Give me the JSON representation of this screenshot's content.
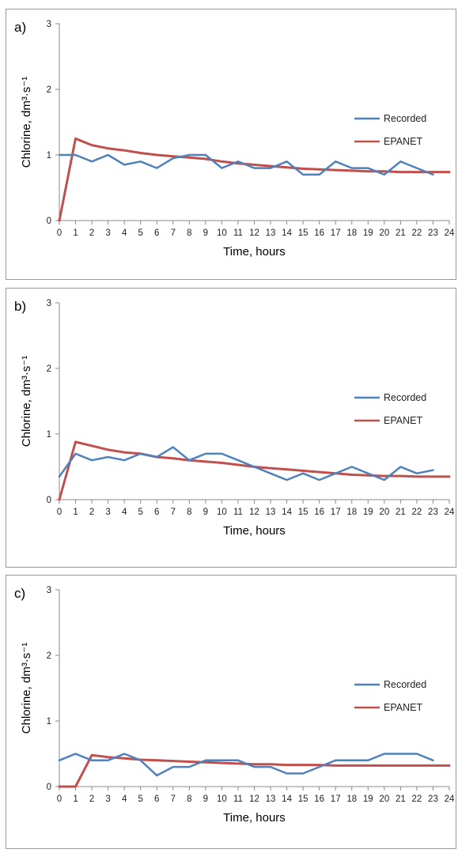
{
  "chart_data": [
    {
      "type": "line",
      "panel_label": "a)",
      "ylabel": "Chlorine, dm³·s⁻¹",
      "xlabel": "Time, hours",
      "xlim": [
        0,
        24
      ],
      "ylim": [
        0,
        3
      ],
      "x_ticks": [
        0,
        1,
        2,
        3,
        4,
        5,
        6,
        7,
        8,
        9,
        10,
        11,
        12,
        13,
        14,
        15,
        16,
        17,
        18,
        19,
        20,
        21,
        22,
        23,
        24
      ],
      "y_ticks": [
        0,
        1,
        2,
        3
      ],
      "legend_position": "right",
      "series": [
        {
          "name": "Recorded",
          "color": "#4f81bd",
          "x": [
            0,
            1,
            2,
            3,
            4,
            5,
            6,
            7,
            8,
            9,
            10,
            11,
            12,
            13,
            14,
            15,
            16,
            17,
            18,
            19,
            20,
            21,
            22,
            23
          ],
          "y": [
            1.0,
            1.0,
            0.9,
            1.0,
            0.85,
            0.9,
            0.8,
            0.95,
            1.0,
            1.0,
            0.8,
            0.9,
            0.8,
            0.8,
            0.9,
            0.7,
            0.7,
            0.9,
            0.8,
            0.8,
            0.7,
            0.9,
            0.8,
            0.7
          ]
        },
        {
          "name": "EPANET",
          "color": "#c0504d",
          "x": [
            0,
            1,
            2,
            3,
            4,
            5,
            6,
            7,
            8,
            9,
            10,
            11,
            12,
            13,
            14,
            15,
            16,
            17,
            18,
            19,
            20,
            21,
            22,
            23,
            24
          ],
          "y": [
            0.0,
            1.25,
            1.15,
            1.1,
            1.07,
            1.03,
            1.0,
            0.98,
            0.96,
            0.94,
            0.9,
            0.87,
            0.85,
            0.83,
            0.81,
            0.79,
            0.78,
            0.77,
            0.76,
            0.75,
            0.75,
            0.74,
            0.74,
            0.74,
            0.74
          ]
        }
      ]
    },
    {
      "type": "line",
      "panel_label": "b)",
      "ylabel": "Chlorine, dm³·s⁻¹",
      "xlabel": "Time, hours",
      "xlim": [
        0,
        24
      ],
      "ylim": [
        0,
        3
      ],
      "x_ticks": [
        0,
        1,
        2,
        3,
        4,
        5,
        6,
        7,
        8,
        9,
        10,
        11,
        12,
        13,
        14,
        15,
        16,
        17,
        18,
        19,
        20,
        21,
        22,
        23,
        24
      ],
      "y_ticks": [
        0,
        1,
        2,
        3
      ],
      "legend_position": "right",
      "series": [
        {
          "name": "Recorded",
          "color": "#4f81bd",
          "x": [
            0,
            1,
            2,
            3,
            4,
            5,
            6,
            7,
            8,
            9,
            10,
            11,
            12,
            13,
            14,
            15,
            16,
            17,
            18,
            19,
            20,
            21,
            22,
            23
          ],
          "y": [
            0.35,
            0.7,
            0.6,
            0.65,
            0.6,
            0.7,
            0.65,
            0.8,
            0.6,
            0.7,
            0.7,
            0.6,
            0.5,
            0.4,
            0.3,
            0.4,
            0.3,
            0.4,
            0.5,
            0.4,
            0.3,
            0.5,
            0.4,
            0.45
          ]
        },
        {
          "name": "EPANET",
          "color": "#c0504d",
          "x": [
            0,
            1,
            2,
            3,
            4,
            5,
            6,
            7,
            8,
            9,
            10,
            11,
            12,
            13,
            14,
            15,
            16,
            17,
            18,
            19,
            20,
            21,
            22,
            23,
            24
          ],
          "y": [
            0.0,
            0.88,
            0.82,
            0.76,
            0.72,
            0.7,
            0.65,
            0.63,
            0.6,
            0.58,
            0.56,
            0.53,
            0.5,
            0.48,
            0.46,
            0.44,
            0.42,
            0.4,
            0.38,
            0.37,
            0.36,
            0.36,
            0.35,
            0.35,
            0.35
          ]
        }
      ]
    },
    {
      "type": "line",
      "panel_label": "c)",
      "ylabel": "Chlorine, dm³·s⁻¹",
      "xlabel": "Time, hours",
      "xlim": [
        0,
        24
      ],
      "ylim": [
        0,
        3
      ],
      "x_ticks": [
        0,
        1,
        2,
        3,
        4,
        5,
        6,
        7,
        8,
        9,
        10,
        11,
        12,
        13,
        14,
        15,
        16,
        17,
        18,
        19,
        20,
        21,
        22,
        23,
        24
      ],
      "y_ticks": [
        0,
        1,
        2,
        3
      ],
      "legend_position": "right",
      "series": [
        {
          "name": "Recorded",
          "color": "#4f81bd",
          "x": [
            0,
            1,
            2,
            3,
            4,
            5,
            6,
            7,
            8,
            9,
            10,
            11,
            12,
            13,
            14,
            15,
            16,
            17,
            18,
            19,
            20,
            21,
            22,
            23
          ],
          "y": [
            0.4,
            0.5,
            0.4,
            0.4,
            0.5,
            0.4,
            0.17,
            0.3,
            0.3,
            0.4,
            0.4,
            0.4,
            0.3,
            0.3,
            0.2,
            0.2,
            0.3,
            0.4,
            0.4,
            0.4,
            0.5,
            0.5,
            0.5,
            0.4
          ]
        },
        {
          "name": "EPANET",
          "color": "#c0504d",
          "x": [
            0,
            1,
            2,
            3,
            4,
            5,
            6,
            7,
            8,
            9,
            10,
            11,
            12,
            13,
            14,
            15,
            16,
            17,
            18,
            19,
            20,
            21,
            22,
            23,
            24
          ],
          "y": [
            0.0,
            0.0,
            0.48,
            0.45,
            0.43,
            0.41,
            0.4,
            0.39,
            0.38,
            0.37,
            0.36,
            0.35,
            0.34,
            0.34,
            0.33,
            0.33,
            0.33,
            0.32,
            0.32,
            0.32,
            0.32,
            0.32,
            0.32,
            0.32,
            0.32
          ]
        }
      ]
    }
  ]
}
